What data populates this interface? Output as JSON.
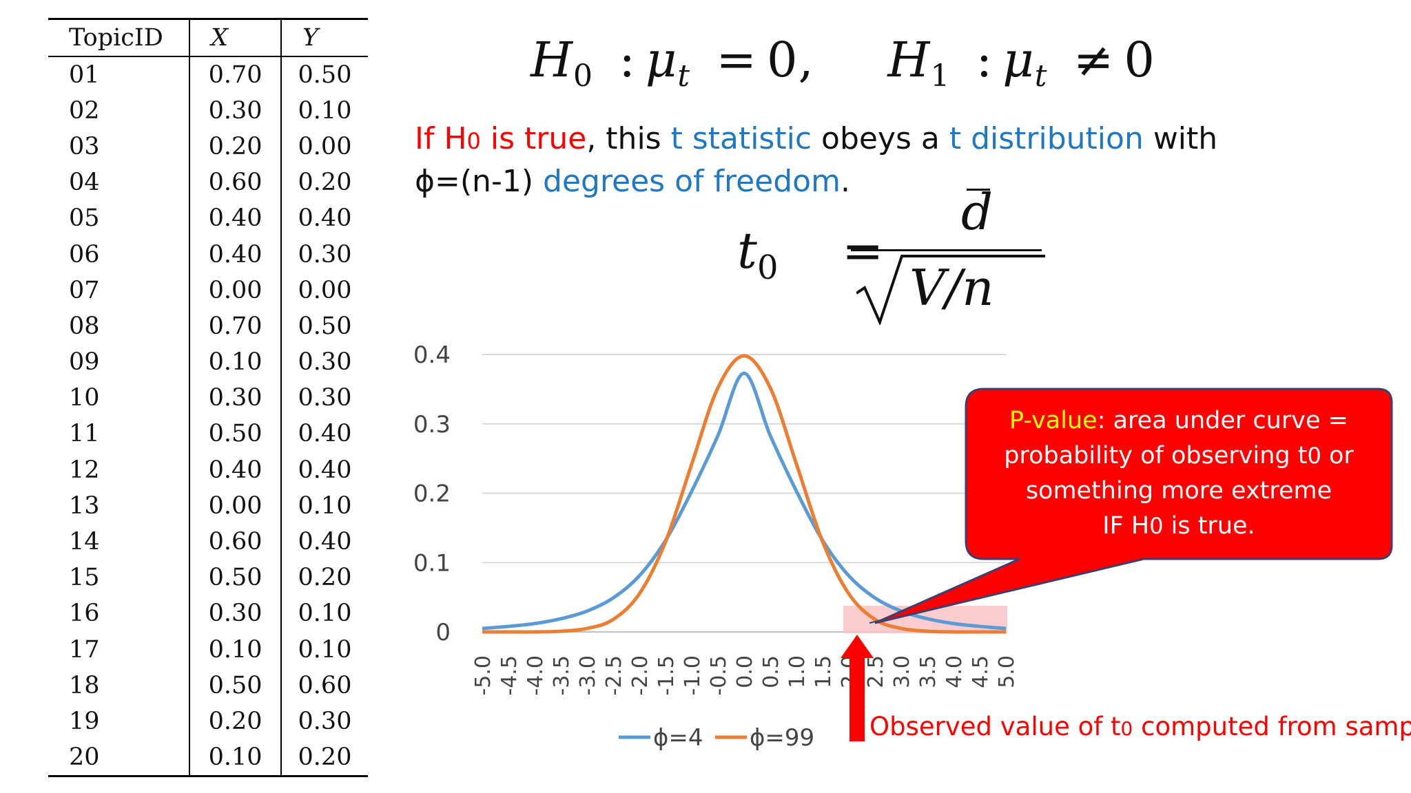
{
  "table": {
    "headers": [
      "TopicID",
      "X",
      "Y"
    ],
    "rows": [
      [
        "01",
        "0.70",
        "0.50"
      ],
      [
        "02",
        "0.30",
        "0.10"
      ],
      [
        "03",
        "0.20",
        "0.00"
      ],
      [
        "04",
        "0.60",
        "0.20"
      ],
      [
        "05",
        "0.40",
        "0.40"
      ],
      [
        "06",
        "0.40",
        "0.30"
      ],
      [
        "07",
        "0.00",
        "0.00"
      ],
      [
        "08",
        "0.70",
        "0.50"
      ],
      [
        "09",
        "0.10",
        "0.30"
      ],
      [
        "10",
        "0.30",
        "0.30"
      ],
      [
        "11",
        "0.50",
        "0.40"
      ],
      [
        "12",
        "0.40",
        "0.40"
      ],
      [
        "13",
        "0.00",
        "0.10"
      ],
      [
        "14",
        "0.60",
        "0.40"
      ],
      [
        "15",
        "0.50",
        "0.20"
      ],
      [
        "16",
        "0.30",
        "0.10"
      ],
      [
        "17",
        "0.10",
        "0.10"
      ],
      [
        "18",
        "0.50",
        "0.60"
      ],
      [
        "19",
        "0.20",
        "0.30"
      ],
      [
        "20",
        "0.10",
        "0.20"
      ]
    ]
  },
  "hypotheses": {
    "h0_lhs": "H",
    "h0_sub": "0",
    "h0_sep": ":",
    "h0_mu": "μ",
    "h0_mu_sub": "t",
    "h0_rel": "=",
    "h0_rhs": "0,",
    "h1_lhs": "H",
    "h1_sub": "1",
    "h1_sep": ":",
    "h1_mu": "μ",
    "h1_mu_sub": "t",
    "h1_rel": "≠",
    "h1_rhs": "0"
  },
  "explanation": {
    "l1_a": "If H",
    "l1_a_sub": "0",
    "l1_b": " is true",
    "l1_c": ", this ",
    "l1_d": "t statistic",
    "l1_e": " obeys a ",
    "l1_f": "t distribution",
    "l1_g": " with",
    "l2_a": "ϕ=(n-1) ",
    "l2_b": "degrees of freedom",
    "l2_c": "."
  },
  "formula": {
    "lhs": "t",
    "lhs_sub": "0",
    "eq": "=",
    "numerator": "d",
    "denominator": "V/n"
  },
  "colors": {
    "phi4": "#5b9bd5",
    "phi99": "#ed7d31",
    "callout": "#ff0000",
    "highlight": "#f8c4c4",
    "grid": "#d9d9d9"
  },
  "chart_data": {
    "type": "line",
    "x": [
      -5.0,
      -4.5,
      -4.0,
      -3.5,
      -3.0,
      -2.5,
      -2.0,
      -1.5,
      -1.0,
      -0.5,
      0.0,
      0.5,
      1.0,
      1.5,
      2.0,
      2.5,
      3.0,
      3.5,
      4.0,
      4.5,
      5.0
    ],
    "x_tick_labels": [
      "-5.0",
      "-4.5",
      "-4.0",
      "-3.5",
      "-3.0",
      "-2.5",
      "-2.0",
      "-1.5",
      "-1.0",
      "-0.5",
      "0.0",
      "0.5",
      "1.0",
      "1.5",
      "2.0",
      "2.5",
      "3.0",
      "3.5",
      "4.0",
      "4.5",
      "5.0"
    ],
    "y_tick_labels": [
      "0.4",
      "0.3",
      "0.2",
      "0.1",
      "0"
    ],
    "y_ticks": [
      0.4,
      0.3,
      0.2,
      0.1,
      0
    ],
    "ylim": [
      0,
      0.4
    ],
    "grid": true,
    "legend_position": "bottom",
    "series": [
      {
        "name": "ϕ=4",
        "values": [
          0.005,
          0.008,
          0.012,
          0.019,
          0.03,
          0.049,
          0.081,
          0.132,
          0.203,
          0.283,
          0.373,
          0.283,
          0.203,
          0.132,
          0.081,
          0.049,
          0.03,
          0.019,
          0.012,
          0.008,
          0.005
        ]
      },
      {
        "name": "ϕ=99",
        "values": [
          0.0,
          0.0,
          0.0,
          0.001,
          0.005,
          0.018,
          0.055,
          0.13,
          0.242,
          0.352,
          0.398,
          0.352,
          0.242,
          0.13,
          0.055,
          0.018,
          0.005,
          0.001,
          0.0,
          0.0,
          0.0
        ]
      }
    ],
    "highlight_range": [
      2.0,
      5.0
    ],
    "observed_t0": 2.0
  },
  "callout": {
    "l1_a": "P-value",
    "l1_b": ": area under curve =",
    "l2_a": "probability of observing t",
    "l2_sub": "0",
    "l2_b": " or",
    "l3": "something more extreme",
    "l4_a": "IF H",
    "l4_sub": "0",
    "l4_b": " is true."
  },
  "observed": {
    "a": "Observed value of t",
    "sub": "0",
    "b": " computed from sample"
  }
}
